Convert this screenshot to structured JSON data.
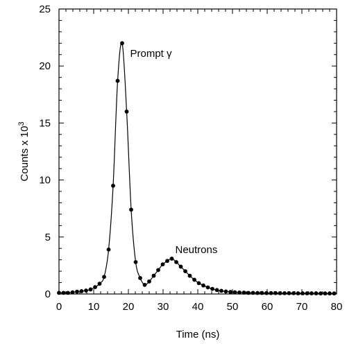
{
  "chart_data": {
    "type": "scatter",
    "xlabel": "Time (ns)",
    "ylabel_main": "Counts x 10",
    "ylabel_exponent": "3",
    "xlim": [
      0,
      80
    ],
    "ylim": [
      0,
      25
    ],
    "xticks": [
      0,
      10,
      20,
      30,
      40,
      50,
      60,
      70,
      80
    ],
    "yticks": [
      0,
      5,
      10,
      15,
      20,
      25
    ],
    "x_minor_step": 2,
    "y_minor_step": 1,
    "grid": false,
    "annotations": [
      {
        "text": "Prompt γ",
        "x": 20.5,
        "y": 20.8
      },
      {
        "text": "Neutrons",
        "x": 33.5,
        "y": 3.6
      }
    ],
    "series": [
      {
        "style": "line+markers",
        "x": [
          0,
          1.3,
          2.6,
          3.9,
          5.2,
          6.5,
          7.8,
          9.1,
          10.4,
          11.7,
          13.0,
          14.3,
          15.6,
          16.9,
          18.2,
          19.5,
          20.8,
          22.1,
          23.4,
          24.7,
          26.0,
          27.3,
          28.6,
          29.9,
          31.2,
          32.5,
          33.8,
          35.1,
          36.4,
          37.7,
          39.0,
          40.3,
          41.6,
          42.9,
          44.2,
          45.5,
          46.8,
          48.1,
          49.4,
          50.7,
          52.0,
          53.3,
          54.6,
          55.9,
          57.2,
          58.5,
          59.8,
          61.1,
          62.4,
          63.7,
          65.0,
          66.3,
          67.6,
          68.9,
          70.2,
          71.5,
          72.8,
          74.1,
          75.4,
          76.7,
          78.0,
          79.3
        ],
        "y": [
          0.1,
          0.1,
          0.1,
          0.15,
          0.2,
          0.25,
          0.3,
          0.4,
          0.6,
          0.9,
          1.5,
          3.9,
          9.5,
          18.7,
          22.0,
          16.0,
          7.4,
          2.8,
          1.4,
          0.8,
          1.1,
          1.6,
          2.1,
          2.6,
          2.9,
          3.1,
          2.8,
          2.4,
          2.0,
          1.6,
          1.25,
          0.95,
          0.75,
          0.58,
          0.45,
          0.35,
          0.28,
          0.22,
          0.18,
          0.15,
          0.13,
          0.12,
          0.1,
          0.1,
          0.09,
          0.09,
          0.08,
          0.08,
          0.08,
          0.07,
          0.07,
          0.07,
          0.07,
          0.06,
          0.06,
          0.06,
          0.06,
          0.06,
          0.05,
          0.05,
          0.05,
          0.05
        ]
      }
    ]
  }
}
